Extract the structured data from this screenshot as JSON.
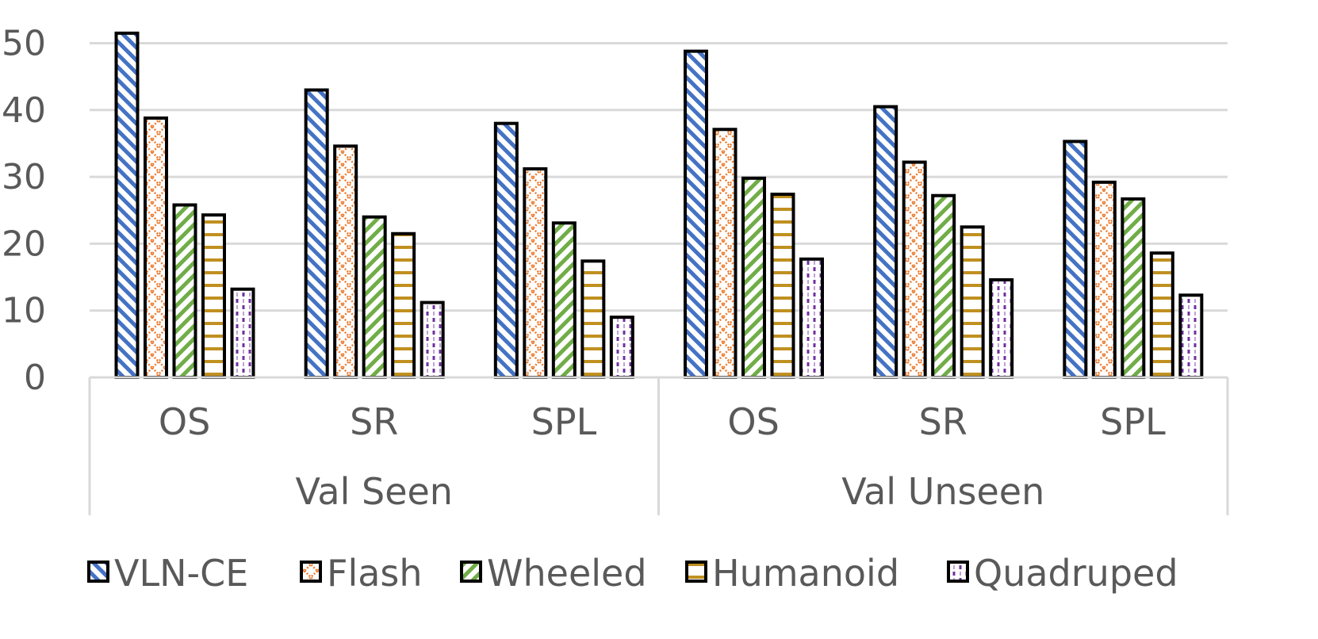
{
  "chart_data": {
    "type": "bar",
    "groups": [
      {
        "name": "Val Seen",
        "categories": [
          "OS",
          "SR",
          "SPL"
        ]
      },
      {
        "name": "Val Unseen",
        "categories": [
          "OS",
          "SR",
          "SPL"
        ]
      }
    ],
    "series": [
      {
        "name": "VLN-CE",
        "color": "#4472C4",
        "pattern": "diag-down",
        "values": [
          51.5,
          43.0,
          38.0,
          48.8,
          40.5,
          35.3
        ]
      },
      {
        "name": "Flash",
        "color": "#ED7D31",
        "pattern": "zigzag",
        "values": [
          38.8,
          34.6,
          31.2,
          37.1,
          32.2,
          29.2
        ]
      },
      {
        "name": "Wheeled",
        "color": "#70AD47",
        "pattern": "diag-up",
        "values": [
          25.8,
          24.0,
          23.1,
          29.8,
          27.2,
          26.7
        ]
      },
      {
        "name": "Humanoid",
        "color": "#C09020",
        "pattern": "horizontal",
        "values": [
          24.3,
          21.5,
          17.4,
          27.4,
          22.5,
          18.6
        ]
      },
      {
        "name": "Quadruped",
        "color": "#7030A0",
        "pattern": "dotted",
        "values": [
          13.2,
          11.2,
          9.0,
          17.7,
          14.6,
          12.3
        ]
      }
    ],
    "yticks": [
      0,
      10,
      20,
      30,
      40,
      50
    ],
    "ylim": [
      0,
      52
    ],
    "grid": true,
    "legend_position": "bottom"
  }
}
